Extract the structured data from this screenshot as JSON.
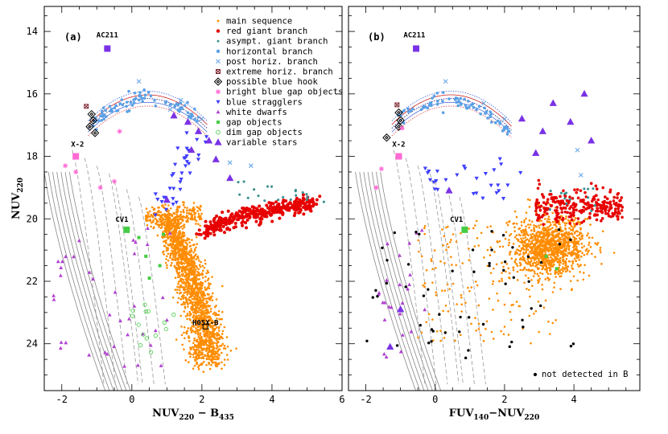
{
  "chart_data": [
    {
      "type": "scatter",
      "panel_label": "(a)",
      "xlabel": "NUV",
      "xlabel_sub1": "220",
      "xlabel_mid": " − B",
      "xlabel_sub2": "435",
      "ylabel": "NUV",
      "ylabel_sub": "220",
      "xlim": [
        -2.5,
        6.0
      ],
      "ylim": [
        25.5,
        13.2
      ],
      "x_ticks": [
        -2,
        0,
        2,
        4,
        6
      ],
      "y_ticks": [
        14,
        16,
        18,
        20,
        22,
        24
      ],
      "annotations": [
        {
          "text": "AC211",
          "x": -0.7,
          "y": 14.5
        },
        {
          "text": "X-2",
          "x": -1.55,
          "y": 18.0
        },
        {
          "text": "CV1",
          "x": -0.1,
          "y": 20.35
        },
        {
          "text": "H05X-B",
          "x": 2.1,
          "y": 23.4
        }
      ],
      "legend": {
        "placement": "top-right",
        "entries": [
          {
            "label": "main sequence",
            "color": "#ff8c00",
            "marker": "dot"
          },
          {
            "label": "red giant branch",
            "color": "#e60000",
            "marker": "circle"
          },
          {
            "label": "asympt. giant branch",
            "color": "#3a8f8f",
            "marker": "dot"
          },
          {
            "label": "horizontal branch",
            "color": "#5aa0e6",
            "marker": "circle"
          },
          {
            "label": "post horiz. branch",
            "color": "#6aa8e8",
            "marker": "cross"
          },
          {
            "label": "extreme horiz. branch",
            "color": "#7a1f2a",
            "marker": "box-x"
          },
          {
            "label": "possible blue hook",
            "color": "#000000",
            "marker": "diamond"
          },
          {
            "label": "bright blue gap objects",
            "color": "#ff69d4",
            "marker": "star"
          },
          {
            "label": "blue stragglers",
            "color": "#3c3cff",
            "marker": "tri-down"
          },
          {
            "label": "white dwarfs",
            "color": "#b040d0",
            "marker": "tri-up-small"
          },
          {
            "label": "gap objects",
            "color": "#44cc44",
            "marker": "small-square"
          },
          {
            "label": "dim gap objects",
            "color": "#44cc44",
            "marker": "open-circle"
          },
          {
            "label": "variable stars",
            "color": "#7a32e6",
            "marker": "tri-up"
          }
        ]
      },
      "highlighted": [
        {
          "name": "AC211",
          "x": -0.7,
          "y": 14.55,
          "color": "#7a32e6"
        },
        {
          "name": "X-2",
          "x": -1.6,
          "y": 18.0,
          "color": "#ff69d4"
        },
        {
          "name": "CV1",
          "x": -0.15,
          "y": 20.35,
          "color": "#44cc44"
        }
      ],
      "series": [
        {
          "name": "main sequence",
          "description": "dense orange cloud from (0.5, 20.0) curving down to (2.5, 24.5)"
        },
        {
          "name": "red giant branch",
          "description": "red points from (2.0, 20.4) rising to (5.5, 19.5)"
        },
        {
          "name": "horizontal branch",
          "description": "blue points along arc from (-1.2, 17.2) peaking near (0.5, 16.1) to (2.0, 17.0)"
        },
        {
          "name": "blue stragglers",
          "description": "blue triangles from (1.0, 19.5) to (2.0, 17.7)"
        },
        {
          "name": "white dwarfs",
          "description": "purple triangles scattered in x -2.3 to 1.3, y 20 to 25"
        }
      ]
    },
    {
      "type": "scatter",
      "panel_label": "(b)",
      "xlabel": "FUV",
      "xlabel_sub1": "140",
      "xlabel_mid": "−NUV",
      "xlabel_sub2": "220",
      "xlim": [
        -2.5,
        6.0
      ],
      "ylim": [
        25.5,
        13.2
      ],
      "x_ticks": [
        -2,
        0,
        2,
        4
      ],
      "y_ticks": [
        14,
        16,
        18,
        20,
        22,
        24
      ],
      "annotations": [
        {
          "text": "AC211",
          "x": -0.6,
          "y": 14.5
        },
        {
          "text": "X-2",
          "x": -1.05,
          "y": 18.0
        },
        {
          "text": "CV1",
          "x": 0.8,
          "y": 20.35
        }
      ],
      "legend": {
        "placement": "bottom-right",
        "entries": [
          {
            "label": "not detected in B",
            "color": "#000000",
            "marker": "dot"
          }
        ]
      },
      "highlighted": [
        {
          "name": "AC211",
          "x": -0.55,
          "y": 14.55,
          "color": "#7a32e6"
        },
        {
          "name": "X-2",
          "x": -1.05,
          "y": 18.0,
          "color": "#ff69d4"
        },
        {
          "name": "CV1",
          "x": 0.85,
          "y": 20.35,
          "color": "#44cc44"
        }
      ],
      "series": [
        {
          "name": "main sequence",
          "description": "orange cloud centered near (3.3, 20.8) with scatter"
        },
        {
          "name": "red giant branch",
          "description": "red points x 3.0 to 5.5 near y 19.8"
        },
        {
          "name": "not detected in B",
          "description": "black dots scattered x -2 to 4, y 20 to 24.5"
        }
      ]
    }
  ]
}
